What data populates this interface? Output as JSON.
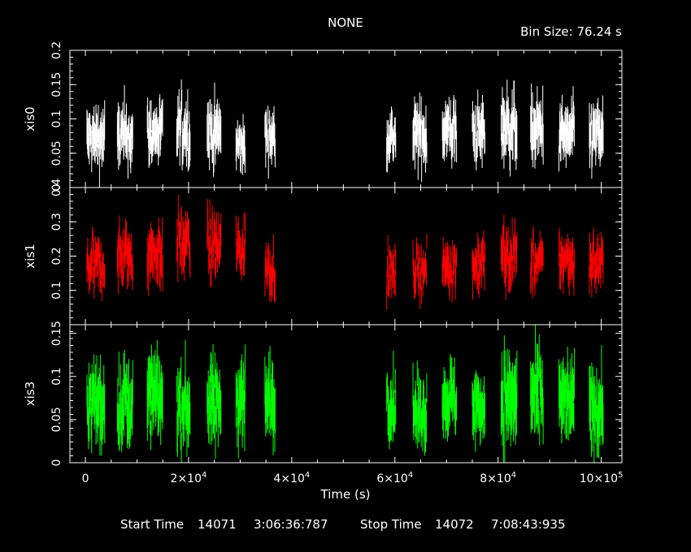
{
  "chart_data": {
    "type": "scatter",
    "title": "NONE",
    "bin_size": "Bin Size: 76.24 s",
    "xlabel": "Time (s)",
    "xlim": [
      -3000,
      104000
    ],
    "x_ticks": [
      {
        "value": 0,
        "label": "0"
      },
      {
        "value": 20000,
        "mant": "2",
        "exp": "4"
      },
      {
        "value": 40000,
        "mant": "4",
        "exp": "4"
      },
      {
        "value": 60000,
        "mant": "6",
        "exp": "4"
      },
      {
        "value": 80000,
        "mant": "8",
        "exp": "4"
      },
      {
        "value": 100000,
        "mant": "10",
        "exp": "5"
      }
    ],
    "footer": {
      "start_label": "Start Time",
      "start_day": "14071",
      "start_time": "3:06:36:787",
      "stop_label": "Stop Time",
      "stop_day": "14072",
      "stop_time": "7:08:43:935"
    },
    "panels": [
      {
        "name": "xis0",
        "color": "#ffffff",
        "ylim": [
          0,
          0.2
        ],
        "yticks": [
          {
            "value": 0,
            "label": "0"
          },
          {
            "value": 0.05,
            "label": "0.05"
          },
          {
            "value": 0.1,
            "label": "0.1"
          },
          {
            "value": 0.15,
            "label": "0.15"
          },
          {
            "value": 0.2,
            "label": "0.2"
          }
        ],
        "segments": [
          {
            "start": 300,
            "end": 3800,
            "mean": 0.07,
            "spread": 0.018,
            "err": 0.022
          },
          {
            "start": 6200,
            "end": 9200,
            "mean": 0.075,
            "spread": 0.018,
            "err": 0.024
          },
          {
            "start": 12000,
            "end": 15000,
            "mean": 0.08,
            "spread": 0.017,
            "err": 0.022
          },
          {
            "start": 17700,
            "end": 20300,
            "mean": 0.085,
            "spread": 0.02,
            "err": 0.025
          },
          {
            "start": 23600,
            "end": 26300,
            "mean": 0.08,
            "spread": 0.018,
            "err": 0.024
          },
          {
            "start": 29200,
            "end": 31000,
            "mean": 0.06,
            "spread": 0.015,
            "err": 0.02
          },
          {
            "start": 34800,
            "end": 36800,
            "mean": 0.075,
            "spread": 0.015,
            "err": 0.02
          },
          {
            "start": 58400,
            "end": 60200,
            "mean": 0.075,
            "spread": 0.015,
            "err": 0.02
          },
          {
            "start": 63500,
            "end": 66200,
            "mean": 0.075,
            "spread": 0.018,
            "err": 0.024
          },
          {
            "start": 69200,
            "end": 72000,
            "mean": 0.085,
            "spread": 0.018,
            "err": 0.024
          },
          {
            "start": 75000,
            "end": 77500,
            "mean": 0.08,
            "spread": 0.017,
            "err": 0.022
          },
          {
            "start": 80600,
            "end": 83700,
            "mean": 0.09,
            "spread": 0.02,
            "err": 0.026
          },
          {
            "start": 86300,
            "end": 88800,
            "mean": 0.085,
            "spread": 0.018,
            "err": 0.024
          },
          {
            "start": 91800,
            "end": 94800,
            "mean": 0.075,
            "spread": 0.018,
            "err": 0.024
          },
          {
            "start": 97700,
            "end": 100400,
            "mean": 0.075,
            "spread": 0.018,
            "err": 0.024
          }
        ]
      },
      {
        "name": "xis1",
        "color": "#ff0000",
        "ylim": [
          0,
          0.4
        ],
        "yticks": [
          {
            "value": 0.1,
            "label": "0.1"
          },
          {
            "value": 0.2,
            "label": "0.2"
          },
          {
            "value": 0.3,
            "label": "0.3"
          },
          {
            "value": 0.4,
            "label": "0.4"
          }
        ],
        "segments": [
          {
            "start": 300,
            "end": 3800,
            "mean": 0.17,
            "spread": 0.035,
            "err": 0.035
          },
          {
            "start": 6200,
            "end": 9200,
            "mean": 0.2,
            "spread": 0.04,
            "err": 0.04
          },
          {
            "start": 12000,
            "end": 15000,
            "mean": 0.21,
            "spread": 0.04,
            "err": 0.04
          },
          {
            "start": 17700,
            "end": 20300,
            "mean": 0.24,
            "spread": 0.04,
            "err": 0.04
          },
          {
            "start": 23600,
            "end": 26300,
            "mean": 0.23,
            "spread": 0.04,
            "err": 0.04
          },
          {
            "start": 29200,
            "end": 31000,
            "mean": 0.22,
            "spread": 0.04,
            "err": 0.04
          },
          {
            "start": 34800,
            "end": 36800,
            "mean": 0.17,
            "spread": 0.035,
            "err": 0.035
          },
          {
            "start": 58400,
            "end": 60200,
            "mean": 0.15,
            "spread": 0.03,
            "err": 0.03
          },
          {
            "start": 63500,
            "end": 66200,
            "mean": 0.16,
            "spread": 0.03,
            "err": 0.03
          },
          {
            "start": 69200,
            "end": 72000,
            "mean": 0.17,
            "spread": 0.03,
            "err": 0.035
          },
          {
            "start": 75000,
            "end": 77500,
            "mean": 0.18,
            "spread": 0.035,
            "err": 0.035
          },
          {
            "start": 80600,
            "end": 83700,
            "mean": 0.2,
            "spread": 0.04,
            "err": 0.04
          },
          {
            "start": 86300,
            "end": 88800,
            "mean": 0.18,
            "spread": 0.035,
            "err": 0.035
          },
          {
            "start": 91800,
            "end": 94800,
            "mean": 0.19,
            "spread": 0.035,
            "err": 0.035
          },
          {
            "start": 97700,
            "end": 100400,
            "mean": 0.18,
            "spread": 0.035,
            "err": 0.035
          }
        ]
      },
      {
        "name": "xis3",
        "color": "#00ff00",
        "ylim": [
          0,
          0.16
        ],
        "yticks": [
          {
            "value": 0,
            "label": "0"
          },
          {
            "value": 0.05,
            "label": "0.05"
          },
          {
            "value": 0.1,
            "label": "0.1"
          },
          {
            "value": 0.15,
            "label": "0.15"
          }
        ],
        "segments": [
          {
            "start": 300,
            "end": 3800,
            "mean": 0.07,
            "spread": 0.018,
            "err": 0.025
          },
          {
            "start": 6200,
            "end": 9200,
            "mean": 0.07,
            "spread": 0.018,
            "err": 0.025
          },
          {
            "start": 12000,
            "end": 15000,
            "mean": 0.075,
            "spread": 0.018,
            "err": 0.025
          },
          {
            "start": 17700,
            "end": 20300,
            "mean": 0.065,
            "spread": 0.018,
            "err": 0.025
          },
          {
            "start": 23600,
            "end": 26300,
            "mean": 0.07,
            "spread": 0.018,
            "err": 0.025
          },
          {
            "start": 29200,
            "end": 31000,
            "mean": 0.075,
            "spread": 0.018,
            "err": 0.025
          },
          {
            "start": 34800,
            "end": 36800,
            "mean": 0.07,
            "spread": 0.018,
            "err": 0.025
          },
          {
            "start": 58400,
            "end": 60200,
            "mean": 0.07,
            "spread": 0.015,
            "err": 0.022
          },
          {
            "start": 63500,
            "end": 66200,
            "mean": 0.06,
            "spread": 0.015,
            "err": 0.022
          },
          {
            "start": 69200,
            "end": 72000,
            "mean": 0.075,
            "spread": 0.015,
            "err": 0.022
          },
          {
            "start": 75000,
            "end": 77500,
            "mean": 0.065,
            "spread": 0.015,
            "err": 0.022
          },
          {
            "start": 80600,
            "end": 83700,
            "mean": 0.075,
            "spread": 0.02,
            "err": 0.028
          },
          {
            "start": 86300,
            "end": 88800,
            "mean": 0.075,
            "spread": 0.02,
            "err": 0.028
          },
          {
            "start": 91800,
            "end": 94800,
            "mean": 0.07,
            "spread": 0.018,
            "err": 0.025
          },
          {
            "start": 97700,
            "end": 100400,
            "mean": 0.065,
            "spread": 0.018,
            "err": 0.025
          }
        ]
      }
    ]
  }
}
